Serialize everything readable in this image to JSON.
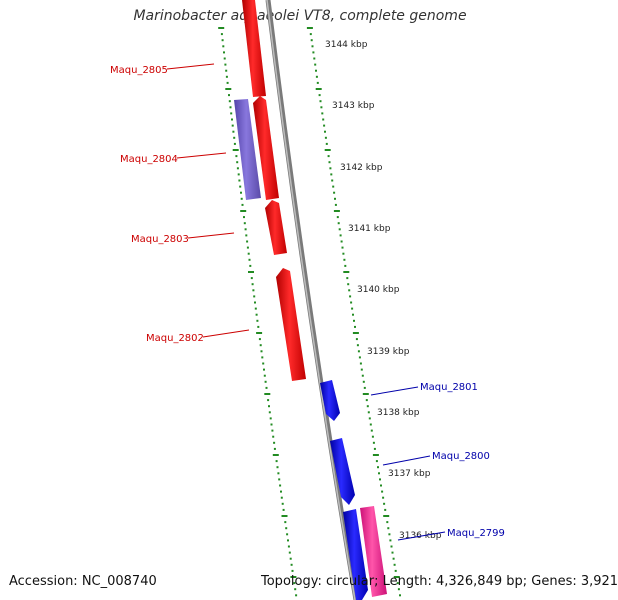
{
  "title": "Marinobacter aquaeolei VT8, complete genome",
  "footer": {
    "accession": "Accession: NC_008740",
    "topology": "Topology: circular; Length: 4,326,849 bp; Genes: 3,921"
  },
  "colors": {
    "forward_gene": "#ff0000",
    "reverse_gene": "#0000ff",
    "rna_gene_left": "#7766cc",
    "rna_gene_right": "#ff3399",
    "backbone": "#888888",
    "ticks": "#228b22",
    "left_label": "#cc0000",
    "right_label": "#0000aa"
  },
  "scale_labels": [
    "3144 kbp",
    "3143 kbp",
    "3142 kbp",
    "3141 kbp",
    "3140 kbp",
    "3139 kbp",
    "3138 kbp",
    "3137 kbp",
    "3136 kbp"
  ],
  "gene_labels_left": [
    "Maqu_2805",
    "Maqu_2804",
    "Maqu_2803",
    "Maqu_2802"
  ],
  "gene_labels_right": [
    "Maqu_2801",
    "Maqu_2800",
    "Maqu_2799"
  ]
}
